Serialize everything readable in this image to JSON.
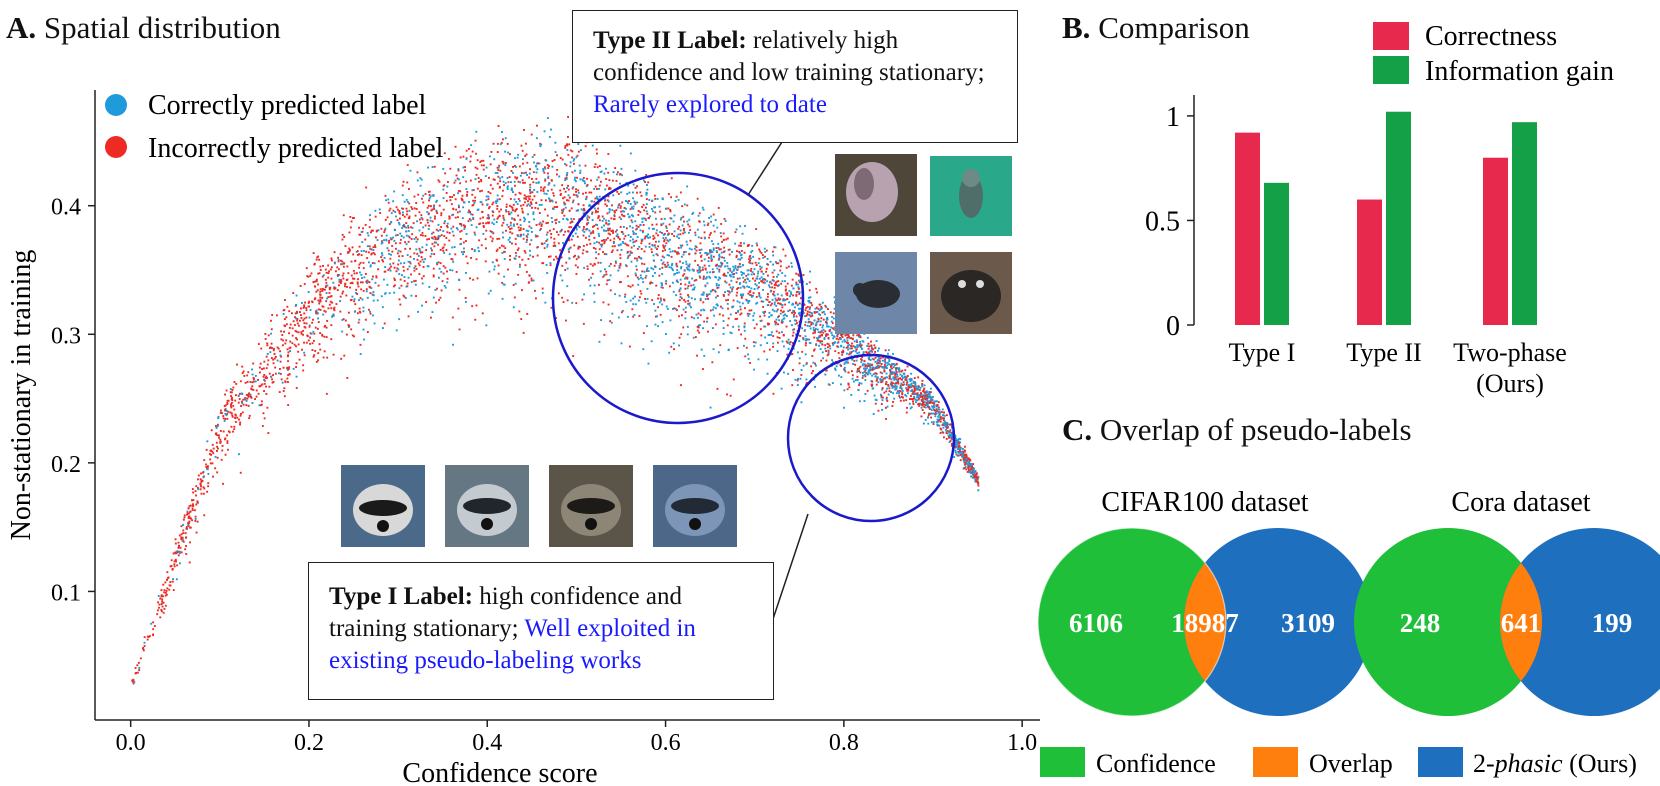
{
  "panel_a": {
    "letter": "A.",
    "title": "Spatial distribution",
    "legend": [
      "Correctly predicted label",
      "Incorrectly predicted label"
    ],
    "callout_type2": {
      "bold": "Type II Label:",
      "text": " relatively high confidence and low training stationary; ",
      "blue": "Rarely explored to date"
    },
    "callout_type1": {
      "bold": "Type I Label:",
      "text": " high confidence and training stationary; ",
      "blue": "Well exploited in existing pseudo-labeling works"
    },
    "thumbnails_type2": [
      "raccoon-image-1",
      "raccoon-image-2",
      "raccoon-image-3",
      "raccoon-image-4"
    ],
    "thumbnails_type1": [
      "raccoon-image-5",
      "raccoon-image-6",
      "raccoon-image-7",
      "raccoon-image-8"
    ]
  },
  "panel_b": {
    "letter": "B.",
    "title": "Comparison"
  },
  "panel_c": {
    "letter": "C.",
    "title": "Overlap of pseudo-labels",
    "venns": [
      {
        "dataset": "CIFAR100 dataset",
        "left": "6106",
        "overlap": "18987",
        "right": "3109"
      },
      {
        "dataset": "Cora dataset",
        "left": "248",
        "overlap": "641",
        "right": "199"
      }
    ],
    "legend": [
      {
        "label": "Confidence",
        "color": "#1fbf3a"
      },
      {
        "label": "Overlap",
        "color": "#ff7f0e"
      },
      {
        "label_pre": "2-",
        "label_italic": "phasic",
        "label_post": " (Ours)",
        "color": "#1f6fbf"
      }
    ]
  },
  "colors": {
    "correct": "#1f9bdc",
    "incorrect": "#ee2a24",
    "correctness": "#e8294e",
    "information_gain": "#14a046",
    "circle": "#1a1acc"
  },
  "chart_data": [
    {
      "type": "scatter",
      "title": "Spatial distribution",
      "xlabel": "Confidence score",
      "ylabel": "Non-stationary in training",
      "xlim": [
        -0.04,
        1.02
      ],
      "ylim": [
        0.0,
        0.49
      ],
      "xticks": [
        "0.0",
        "0.2",
        "0.4",
        "0.6",
        "0.8",
        "1.0"
      ],
      "yticks": [
        "0.1",
        "0.2",
        "0.3",
        "0.4"
      ],
      "series": [
        {
          "name": "Correctly predicted label",
          "ridge": [
            [
              0.0,
              0.03
            ],
            [
              0.1,
              0.24
            ],
            [
              0.2,
              0.34
            ],
            [
              0.3,
              0.4
            ],
            [
              0.4,
              0.43
            ],
            [
              0.5,
              0.43
            ],
            [
              0.6,
              0.39
            ],
            [
              0.7,
              0.36
            ],
            [
              0.8,
              0.31
            ],
            [
              0.9,
              0.25
            ],
            [
              0.95,
              0.19
            ]
          ]
        },
        {
          "name": "Incorrectly predicted label",
          "ridge": [
            [
              0.0,
              0.03
            ],
            [
              0.1,
              0.24
            ],
            [
              0.2,
              0.34
            ],
            [
              0.3,
              0.4
            ],
            [
              0.4,
              0.43
            ],
            [
              0.5,
              0.43
            ],
            [
              0.6,
              0.39
            ],
            [
              0.7,
              0.36
            ],
            [
              0.8,
              0.31
            ],
            [
              0.9,
              0.25
            ],
            [
              0.95,
              0.19
            ]
          ]
        }
      ],
      "grid": false,
      "legend_position": "top-left"
    },
    {
      "type": "bar",
      "title": "Comparison",
      "categories": [
        "Type I",
        "Type II",
        "Two-phase (Ours)"
      ],
      "series": [
        {
          "name": "Correctness",
          "values": [
            0.92,
            0.6,
            0.8
          ]
        },
        {
          "name": "Information gain",
          "values": [
            0.68,
            1.02,
            0.97
          ]
        }
      ],
      "yticks": [
        "0",
        "0.5",
        "1"
      ],
      "ylim": [
        0,
        1.1
      ],
      "grid": false,
      "legend_position": "top-right"
    }
  ]
}
